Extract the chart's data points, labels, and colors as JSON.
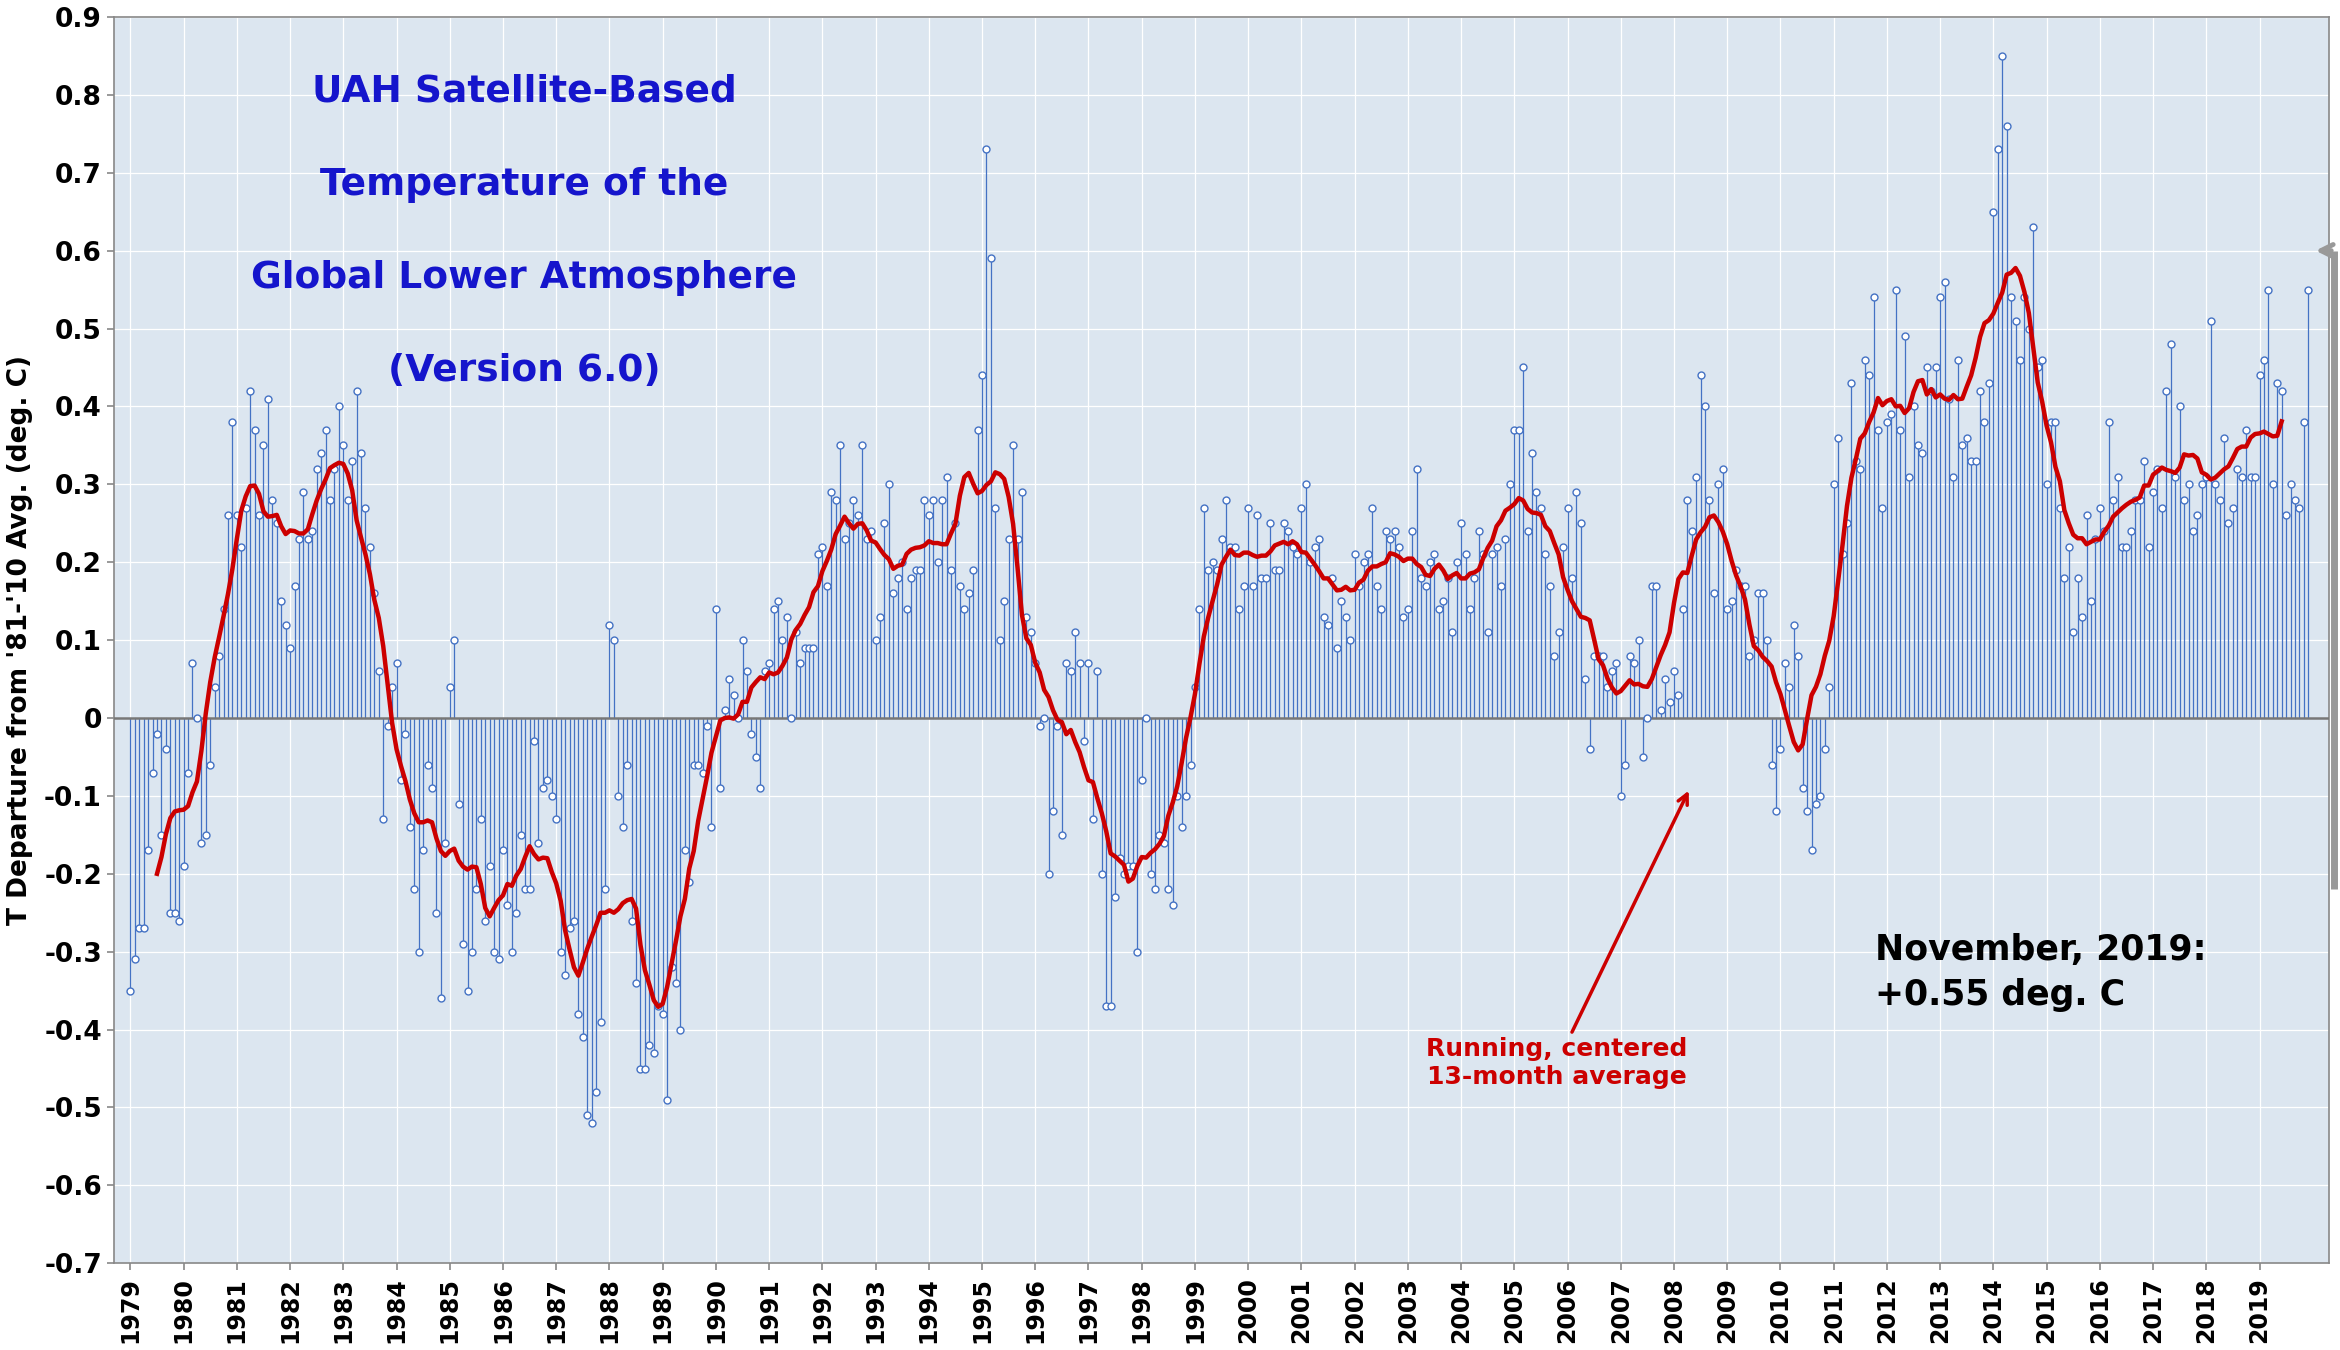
{
  "title_line1": "UAH Satellite-Based",
  "title_line2": "Temperature of the",
  "title_line3": "Global Lower Atmosphere",
  "title_line4": "(Version 6.0)",
  "ylabel": "T Departure from '81-'10 Avg. (deg. C)",
  "annotation_label": "Running, centered\n13-month average",
  "note_label": "November, 2019:\n+0.55 deg. C",
  "title_color": "#1515CC",
  "line_color": "#4472C4",
  "smooth_color": "#CC0000",
  "ylim": [
    -0.7,
    0.9
  ],
  "yticks": [
    -0.7,
    -0.6,
    -0.5,
    -0.4,
    -0.3,
    -0.2,
    -0.1,
    0.0,
    0.1,
    0.2,
    0.3,
    0.4,
    0.5,
    0.6,
    0.7,
    0.8,
    0.9
  ],
  "bg_color": "#DCE6F0",
  "background_color": "#FFFFFF",
  "monthly_data": [
    -0.35,
    -0.31,
    -0.27,
    -0.27,
    -0.17,
    -0.07,
    -0.02,
    -0.15,
    -0.04,
    -0.25,
    -0.25,
    -0.26,
    -0.19,
    -0.07,
    0.07,
    -0.0,
    -0.16,
    -0.15,
    -0.06,
    0.04,
    0.08,
    0.14,
    0.26,
    0.38,
    0.26,
    0.22,
    0.27,
    0.42,
    0.37,
    0.26,
    0.35,
    0.41,
    0.28,
    0.25,
    0.15,
    0.12,
    0.09,
    0.17,
    0.23,
    0.29,
    0.23,
    0.24,
    0.32,
    0.34,
    0.37,
    0.28,
    0.32,
    0.4,
    0.35,
    0.28,
    0.33,
    0.42,
    0.34,
    0.27,
    0.22,
    0.16,
    0.06,
    -0.13,
    -0.01,
    0.04,
    0.07,
    -0.08,
    -0.02,
    -0.14,
    -0.22,
    -0.3,
    -0.17,
    -0.06,
    -0.09,
    -0.25,
    -0.36,
    -0.16,
    0.04,
    0.1,
    -0.11,
    -0.29,
    -0.35,
    -0.3,
    -0.22,
    -0.13,
    -0.26,
    -0.19,
    -0.3,
    -0.31,
    -0.17,
    -0.24,
    -0.3,
    -0.25,
    -0.15,
    -0.22,
    -0.22,
    -0.03,
    -0.16,
    -0.09,
    -0.08,
    -0.1,
    -0.13,
    -0.3,
    -0.33,
    -0.27,
    -0.26,
    -0.38,
    -0.41,
    -0.51,
    -0.52,
    -0.48,
    -0.39,
    -0.22,
    0.12,
    0.1,
    -0.1,
    -0.14,
    -0.06,
    -0.26,
    -0.34,
    -0.45,
    -0.45,
    -0.42,
    -0.43,
    -0.37,
    -0.38,
    -0.49,
    -0.32,
    -0.34,
    -0.4,
    -0.17,
    -0.21,
    -0.06,
    -0.06,
    -0.07,
    -0.01,
    -0.14,
    0.14,
    -0.09,
    0.01,
    0.05,
    0.03,
    0.0,
    0.1,
    0.06,
    -0.02,
    -0.05,
    -0.09,
    0.06,
    0.07,
    0.14,
    0.15,
    0.1,
    0.13,
    0.0,
    0.11,
    0.07,
    0.09,
    0.09,
    0.09,
    0.21,
    0.22,
    0.17,
    0.29,
    0.28,
    0.35,
    0.23,
    0.25,
    0.28,
    0.26,
    0.35,
    0.23,
    0.24,
    0.1,
    0.13,
    0.25,
    0.3,
    0.16,
    0.18,
    0.2,
    0.14,
    0.18,
    0.19,
    0.19,
    0.28,
    0.26,
    0.28,
    0.2,
    0.28,
    0.31,
    0.19,
    0.25,
    0.17,
    0.14,
    0.16,
    0.19,
    0.37,
    0.44,
    0.73,
    0.59,
    0.27,
    0.1,
    0.15,
    0.23,
    0.35,
    0.23,
    0.29,
    0.13,
    0.11,
    0.07,
    -0.01,
    0.0,
    -0.2,
    -0.12,
    -0.01,
    -0.15,
    0.07,
    0.06,
    0.11,
    0.07,
    -0.03,
    0.07,
    -0.13,
    0.06,
    -0.2,
    -0.37,
    -0.37,
    -0.23,
    -0.18,
    -0.2,
    -0.19,
    -0.19,
    -0.3,
    -0.08,
    0.0,
    -0.2,
    -0.22,
    -0.15,
    -0.16,
    -0.22,
    -0.24,
    -0.1,
    -0.14,
    -0.1,
    -0.06,
    0.04,
    0.14,
    0.27,
    0.19,
    0.2,
    0.19,
    0.23,
    0.28,
    0.22,
    0.22,
    0.14,
    0.17,
    0.27,
    0.17,
    0.26,
    0.18,
    0.18,
    0.25,
    0.19,
    0.19,
    0.25,
    0.24,
    0.22,
    0.21,
    0.27,
    0.3,
    0.2,
    0.22,
    0.23,
    0.13,
    0.12,
    0.18,
    0.09,
    0.15,
    0.13,
    0.1,
    0.21,
    0.17,
    0.2,
    0.21,
    0.27,
    0.17,
    0.14,
    0.24,
    0.23,
    0.24,
    0.22,
    0.13,
    0.14,
    0.24,
    0.32,
    0.18,
    0.17,
    0.2,
    0.21,
    0.14,
    0.15,
    0.18,
    0.11,
    0.2,
    0.25,
    0.21,
    0.14,
    0.18,
    0.24,
    0.21,
    0.11,
    0.21,
    0.22,
    0.17,
    0.23,
    0.3,
    0.37,
    0.37,
    0.45,
    0.24,
    0.34,
    0.29,
    0.27,
    0.21,
    0.17,
    0.08,
    0.11,
    0.22,
    0.27,
    0.18,
    0.29,
    0.25,
    0.05,
    -0.04,
    0.08,
    0.08,
    0.08,
    0.04,
    0.06,
    0.07,
    -0.1,
    -0.06,
    0.08,
    0.07,
    0.1,
    -0.05,
    0.0,
    0.17,
    0.17,
    0.01,
    0.05,
    0.02,
    0.06,
    0.03,
    0.14,
    0.28,
    0.24,
    0.31,
    0.44,
    0.4,
    0.28,
    0.16,
    0.3,
    0.32,
    0.14,
    0.15,
    0.19,
    0.17,
    0.17,
    0.08,
    0.1,
    0.16,
    0.16,
    0.1,
    -0.06,
    -0.12,
    -0.04,
    0.07,
    0.04,
    0.12,
    0.08,
    -0.09,
    -0.12,
    -0.17,
    -0.11,
    -0.1,
    -0.04,
    0.04,
    0.3,
    0.36,
    0.21,
    0.25,
    0.43,
    0.33,
    0.32,
    0.46,
    0.44,
    0.54,
    0.37,
    0.27,
    0.38,
    0.39,
    0.55,
    0.37,
    0.49,
    0.31,
    0.4,
    0.35,
    0.34,
    0.45,
    0.42,
    0.45,
    0.54,
    0.56,
    0.41,
    0.31,
    0.46,
    0.35,
    0.36,
    0.33,
    0.33,
    0.42,
    0.38,
    0.43,
    0.65,
    0.73,
    0.85,
    0.76,
    0.54,
    0.51,
    0.46,
    0.54,
    0.5,
    0.63,
    0.45,
    0.46,
    0.3,
    0.38,
    0.38,
    0.27,
    0.18,
    0.22,
    0.11,
    0.18,
    0.13,
    0.26,
    0.15,
    0.23,
    0.27,
    0.24,
    0.38,
    0.28,
    0.31,
    0.22,
    0.22,
    0.24,
    0.28,
    0.28,
    0.33,
    0.22,
    0.29,
    0.32,
    0.27,
    0.42,
    0.48,
    0.31,
    0.4,
    0.28,
    0.3,
    0.24,
    0.26,
    0.3,
    0.31,
    0.51,
    0.3,
    0.28,
    0.36,
    0.25,
    0.27,
    0.32,
    0.31,
    0.37,
    0.31,
    0.31,
    0.44,
    0.46,
    0.55,
    0.3,
    0.43,
    0.42,
    0.26,
    0.3,
    0.28,
    0.27,
    0.38,
    0.55
  ],
  "start_year": 1979,
  "start_month": 1
}
